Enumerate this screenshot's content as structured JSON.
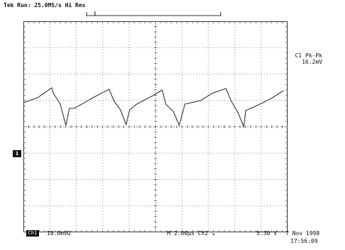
{
  "header": {
    "acquisition_status": "Tek Run: 25.0MS/s    Hi Res"
  },
  "channel": {
    "marker": "1",
    "scale_box": "Ch1",
    "scale_value": "10.0mVΩ"
  },
  "measurement": {
    "label": "C1 Pk-Pk",
    "value": "16.2mV"
  },
  "footer": {
    "timebase": "M 2.00µs  Ch2 ↘",
    "trigger_level": "5.30 V",
    "date": "7 Nov 1998",
    "time": "17:56:09"
  },
  "colors": {
    "trace": "#333333",
    "grid": "#8a8a8a",
    "background": "#ffffff"
  }
}
